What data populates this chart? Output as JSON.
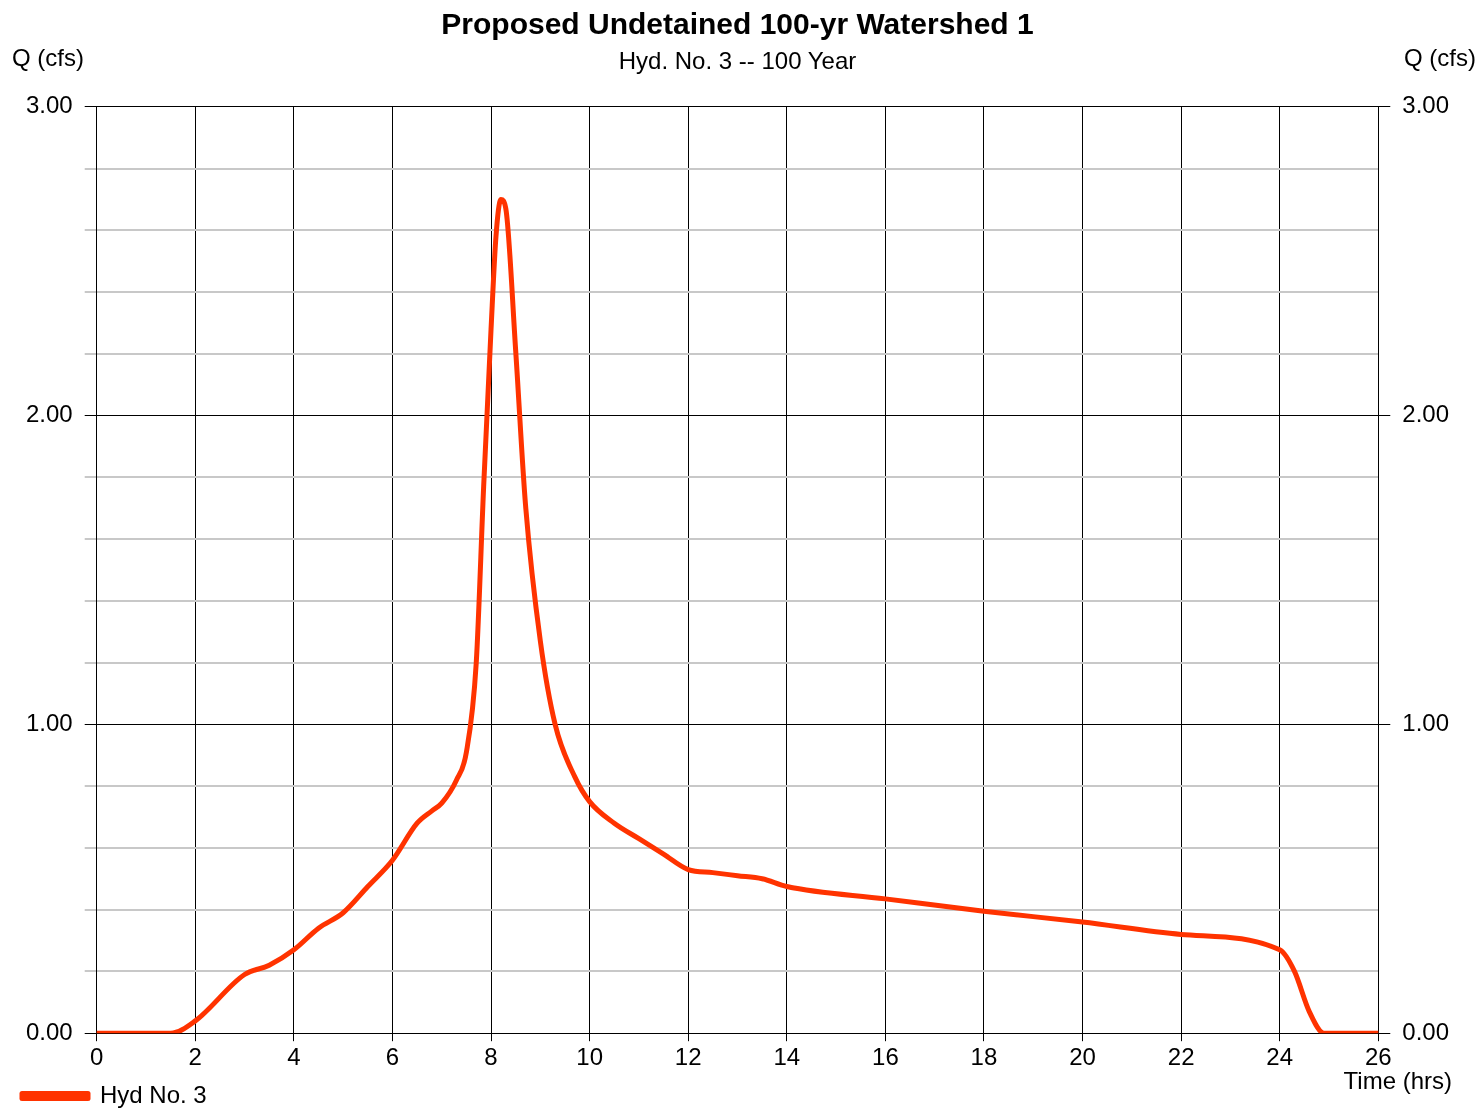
{
  "chart_data": {
    "type": "line",
    "title": "Proposed Undetained 100-yr Watershed 1",
    "subtitle": "Hyd. No. 3 -- 100 Year",
    "xlabel": "Time (hrs)",
    "ylabel": "Q (cfs)",
    "y2label": "Q (cfs)",
    "x": [
      0,
      1.5,
      2,
      3,
      3.5,
      4,
      4.5,
      5,
      5.5,
      6,
      6.5,
      6.8,
      7,
      7.3,
      7.5,
      7.7,
      7.85,
      8,
      8.1,
      8.2,
      8.3,
      8.5,
      8.7,
      9,
      9.3,
      9.7,
      10,
      10.5,
      11,
      11.5,
      12,
      12.5,
      13,
      13.5,
      14,
      16,
      18,
      20,
      22,
      24,
      24.3,
      24.6,
      24.9,
      26
    ],
    "series": [
      {
        "name": "Hyd No. 3",
        "color": "#ff3300",
        "values": [
          0,
          0,
          0.04,
          0.19,
          0.22,
          0.27,
          0.34,
          0.39,
          0.475,
          0.56,
          0.68,
          0.72,
          0.745,
          0.82,
          0.91,
          1.2,
          1.77,
          2.28,
          2.58,
          2.7,
          2.67,
          2.21,
          1.71,
          1.27,
          1.0,
          0.83,
          0.75,
          0.68,
          0.63,
          0.58,
          0.53,
          0.52,
          0.51,
          0.5,
          0.475,
          0.435,
          0.395,
          0.36,
          0.32,
          0.27,
          0.2,
          0.07,
          0,
          0
        ]
      }
    ],
    "xlim": [
      0,
      26
    ],
    "xticks": [
      0,
      2,
      4,
      6,
      8,
      10,
      12,
      14,
      16,
      18,
      20,
      22,
      24,
      26
    ],
    "ylim": [
      0,
      3
    ],
    "yticks": [
      {
        "value": 0,
        "label": "0.00"
      },
      {
        "value": 0.2,
        "label": null
      },
      {
        "value": 0.4,
        "label": null
      },
      {
        "value": 0.6,
        "label": null
      },
      {
        "value": 0.8,
        "label": null
      },
      {
        "value": 1,
        "label": "1.00"
      },
      {
        "value": 1.2,
        "label": null
      },
      {
        "value": 1.4,
        "label": null
      },
      {
        "value": 1.6,
        "label": null
      },
      {
        "value": 1.8,
        "label": null
      },
      {
        "value": 2,
        "label": "2.00"
      },
      {
        "value": 2.2,
        "label": null
      },
      {
        "value": 2.4,
        "label": null
      },
      {
        "value": 2.6,
        "label": null
      },
      {
        "value": 2.8,
        "label": null
      },
      {
        "value": 3,
        "label": "3.00"
      }
    ],
    "y2lim": [
      0,
      3
    ],
    "y2ticks": [
      {
        "value": 0,
        "label": "0.00"
      },
      {
        "value": 1,
        "label": "1.00"
      },
      {
        "value": 2,
        "label": "2.00"
      },
      {
        "value": 3,
        "label": "3.00"
      }
    ],
    "grid": true,
    "legend": "bottom left",
    "marker": "none",
    "line_style": "solid"
  }
}
